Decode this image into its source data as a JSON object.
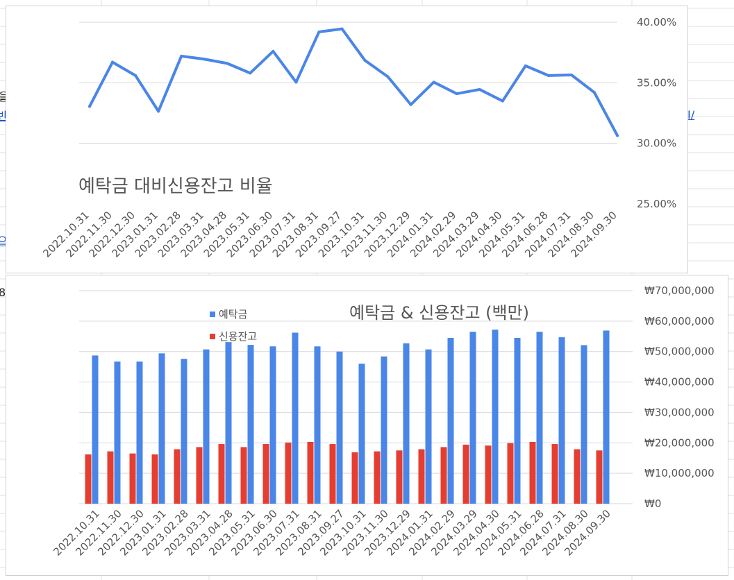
{
  "sheet": {
    "left_fragments": [
      "을",
      "반",
      "으",
      "8"
    ],
    "right_fragment": "I/"
  },
  "chart_data": [
    {
      "type": "line",
      "title": "예탁금 대비신용잔고 비율",
      "xlabel": "",
      "ylabel": "",
      "y_axis_position": "right",
      "ylim": [
        0.25,
        0.4
      ],
      "y_ticks": [
        "40.00%",
        "35.00%",
        "30.00%",
        "25.00%"
      ],
      "y_tick_values": [
        0.4,
        0.35,
        0.3,
        0.25
      ],
      "grid": true,
      "color": "#4a86e8",
      "categories": [
        "2022.10.31",
        "2022.11.30",
        "2022.12.30",
        "2023.01.31",
        "2023.02.28",
        "2023.03.31",
        "2023.04.28",
        "2023.05.31",
        "2023.06.30",
        "2023.07.31",
        "2023.08.31",
        "2023.09.27",
        "2023.10.31",
        "2023.11.30",
        "2023.12.29",
        "2024.01.31",
        "2024.02.29",
        "2024.03.29",
        "2024.04.30",
        "2024.05.31",
        "2024.06.28",
        "2024.07.31",
        "2024.08.30",
        "2024.09.30"
      ],
      "values": [
        0.3305,
        0.367,
        0.356,
        0.3265,
        0.372,
        0.3695,
        0.366,
        0.358,
        0.376,
        0.3505,
        0.392,
        0.3945,
        0.3685,
        0.355,
        0.332,
        0.3505,
        0.341,
        0.3445,
        0.335,
        0.364,
        0.356,
        0.3565,
        0.342,
        0.3065
      ]
    },
    {
      "type": "bar",
      "title": "예탁금 & 신용잔고 (백만)",
      "xlabel": "",
      "ylabel": "",
      "y_axis_position": "right",
      "ylim": [
        0,
        70000000
      ],
      "y_ticks": [
        "₩70,000,000",
        "₩60,000,000",
        "₩50,000,000",
        "₩40,000,000",
        "₩30,000,000",
        "₩20,000,000",
        "₩10,000,000",
        "₩0"
      ],
      "y_tick_values": [
        70000000,
        60000000,
        50000000,
        40000000,
        30000000,
        20000000,
        10000000,
        0
      ],
      "grid": true,
      "legend_position": "top-left",
      "categories": [
        "2022.10.31",
        "2022.11.30",
        "2022.12.30",
        "2023.01.31",
        "2023.02.28",
        "2023.03.31",
        "2023.04.28",
        "2023.05.31",
        "2023.06.30",
        "2023.07.31",
        "2023.08.31",
        "2023.09.27",
        "2023.10.31",
        "2023.11.30",
        "2023.12.29",
        "2024.01.31",
        "2024.02.29",
        "2024.03.29",
        "2024.04.30",
        "2024.05.31",
        "2024.06.28",
        "2024.07.31",
        "2024.08.30",
        "2024.09.30"
      ],
      "series": [
        {
          "name": "예탁금",
          "color": "#4a86e8",
          "values": [
            48700000,
            46700000,
            46700000,
            49400000,
            47600000,
            50700000,
            53100000,
            52200000,
            51700000,
            56200000,
            51700000,
            50000000,
            46000000,
            48400000,
            52700000,
            50700000,
            54500000,
            56500000,
            57200000,
            54500000,
            56500000,
            54700000,
            52100000,
            56900000
          ]
        },
        {
          "name": "신용잔고",
          "color": "#e53e30",
          "values": [
            16200000,
            17200000,
            16500000,
            16200000,
            17900000,
            18600000,
            19600000,
            18600000,
            19600000,
            20100000,
            20300000,
            19600000,
            16900000,
            17200000,
            17500000,
            17900000,
            18600000,
            19400000,
            19100000,
            19900000,
            20300000,
            19600000,
            17900000,
            17500000
          ]
        }
      ]
    }
  ]
}
